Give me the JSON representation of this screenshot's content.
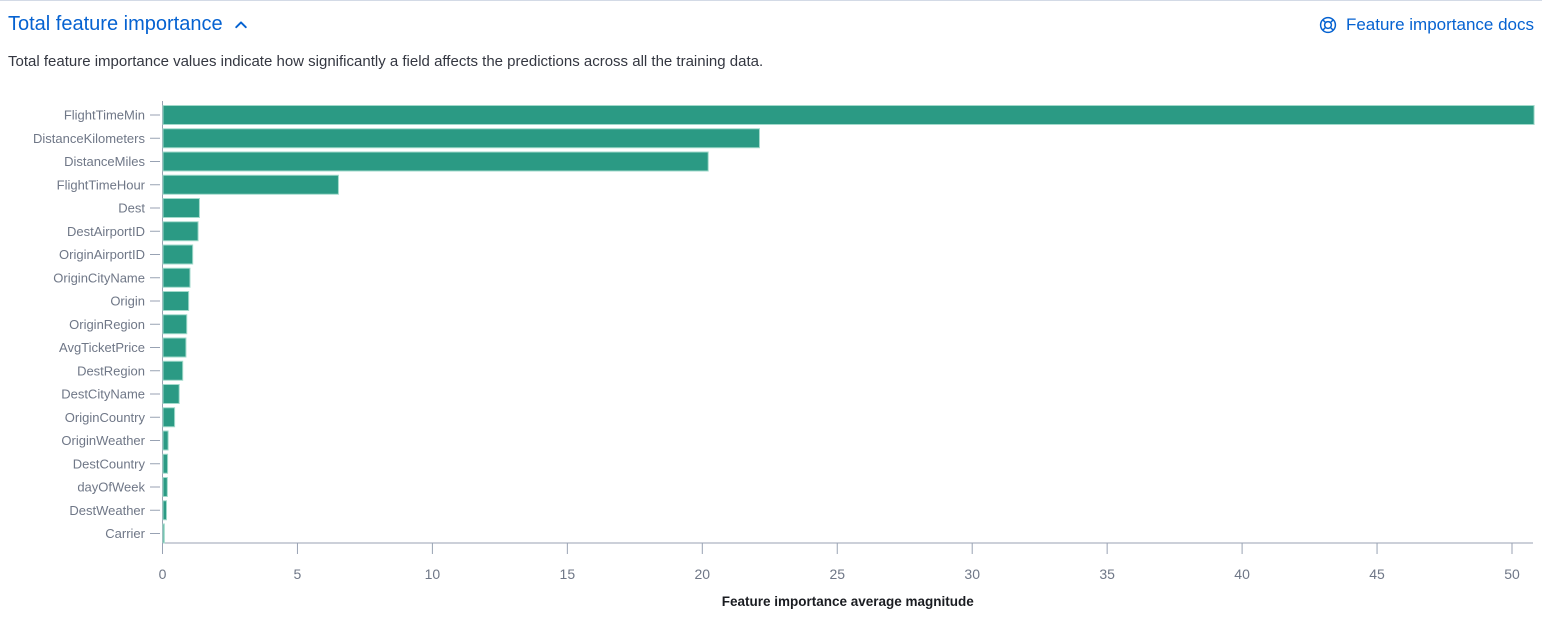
{
  "header": {
    "title": "Total feature importance",
    "collapse_icon": "chevron-up-icon",
    "docs_label": "Feature importance docs",
    "docs_icon": "help-lifebuoy-icon"
  },
  "description": "Total feature importance values indicate how significantly a field affects the predictions across all the training data.",
  "colors": {
    "link_blue": "#0562d1",
    "bar_fill": "#2b9a84",
    "bar_stroke": "#a2dacb",
    "axis_line": "#98a2b3",
    "tick_label": "#6f7787",
    "axis_title": "#1a1c21",
    "description_text": "#343741"
  },
  "chart_data": {
    "type": "bar",
    "orientation": "horizontal",
    "title": "",
    "xlabel": "Feature importance average magnitude",
    "ylabel": "",
    "xlim": [
      0,
      50.8
    ],
    "xticks": [
      0,
      5,
      10,
      15,
      20,
      25,
      30,
      35,
      40,
      45,
      50
    ],
    "grid": false,
    "legend": "none",
    "categories": [
      "FlightTimeMin",
      "DistanceKilometers",
      "DistanceMiles",
      "FlightTimeHour",
      "Dest",
      "DestAirportID",
      "OriginAirportID",
      "OriginCityName",
      "Origin",
      "OriginRegion",
      "AvgTicketPrice",
      "DestRegion",
      "DestCityName",
      "OriginCountry",
      "OriginWeather",
      "DestCountry",
      "dayOfWeek",
      "DestWeather",
      "Carrier"
    ],
    "values": [
      50.8,
      22.1,
      20.2,
      6.5,
      1.35,
      1.3,
      1.1,
      1.0,
      0.95,
      0.88,
      0.85,
      0.73,
      0.6,
      0.43,
      0.19,
      0.17,
      0.16,
      0.13,
      0.05
    ]
  }
}
